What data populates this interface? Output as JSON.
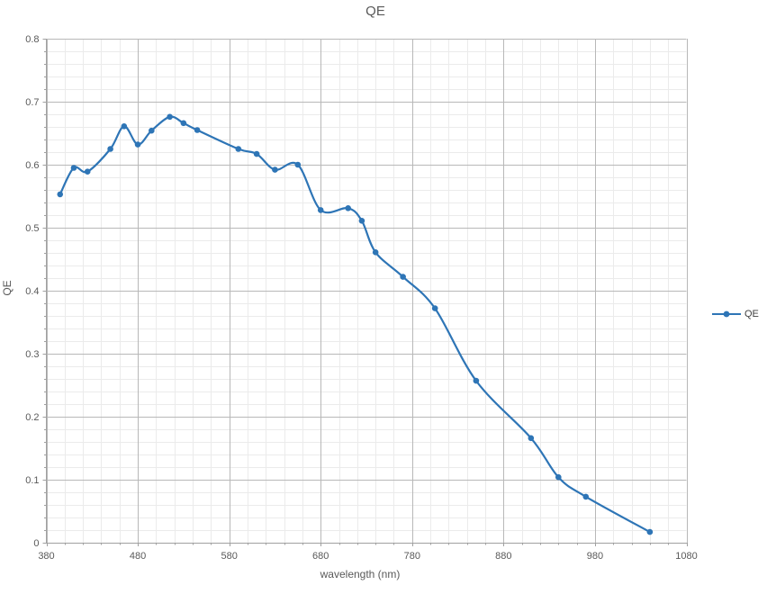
{
  "title": "QE",
  "axes": {
    "x": {
      "label": "wavelength (nm)",
      "min": 380,
      "max": 1080,
      "major_step": 100,
      "minor_step": 20,
      "tick_labels": [
        "380",
        "480",
        "580",
        "680",
        "780",
        "880",
        "980",
        "1080"
      ]
    },
    "y": {
      "label": "QE",
      "min": 0,
      "max": 0.8,
      "major_step": 0.1,
      "minor_step": 0.02,
      "tick_labels": [
        "0",
        "0.1",
        "0.2",
        "0.3",
        "0.4",
        "0.5",
        "0.6",
        "0.7",
        "0.8"
      ]
    }
  },
  "legend": {
    "position": "right",
    "entries": [
      {
        "label": "QE",
        "color": "#2E75B6",
        "marker": "circle"
      }
    ]
  },
  "colors": {
    "line": "#2E75B6",
    "marker": "#2E75B6",
    "text": "#595959",
    "grid_major": "#B8B8B8",
    "grid_minor": "#EBEBEB",
    "axis_line": "#A0A0A0",
    "background": "#FFFFFF"
  },
  "chart_data": {
    "type": "line",
    "title": "QE",
    "xlabel": "wavelength (nm)",
    "ylabel": "QE",
    "xlim": [
      380,
      1080
    ],
    "ylim": [
      0,
      0.8
    ],
    "grid": "major and minor gridlines on both axes",
    "legend_position": "right",
    "line_style": "smooth",
    "series": [
      {
        "name": "QE",
        "color": "#2E75B6",
        "marker": "circle",
        "x": [
          395,
          410,
          425,
          450,
          465,
          480,
          495,
          515,
          530,
          545,
          590,
          610,
          630,
          655,
          680,
          710,
          725,
          740,
          770,
          805,
          850,
          910,
          940,
          970,
          1040
        ],
        "y": [
          0.553,
          0.595,
          0.589,
          0.625,
          0.661,
          0.632,
          0.654,
          0.676,
          0.666,
          0.655,
          0.625,
          0.617,
          0.592,
          0.6,
          0.528,
          0.531,
          0.511,
          0.461,
          0.422,
          0.372,
          0.257,
          0.166,
          0.104,
          0.073,
          0.017
        ]
      }
    ]
  }
}
